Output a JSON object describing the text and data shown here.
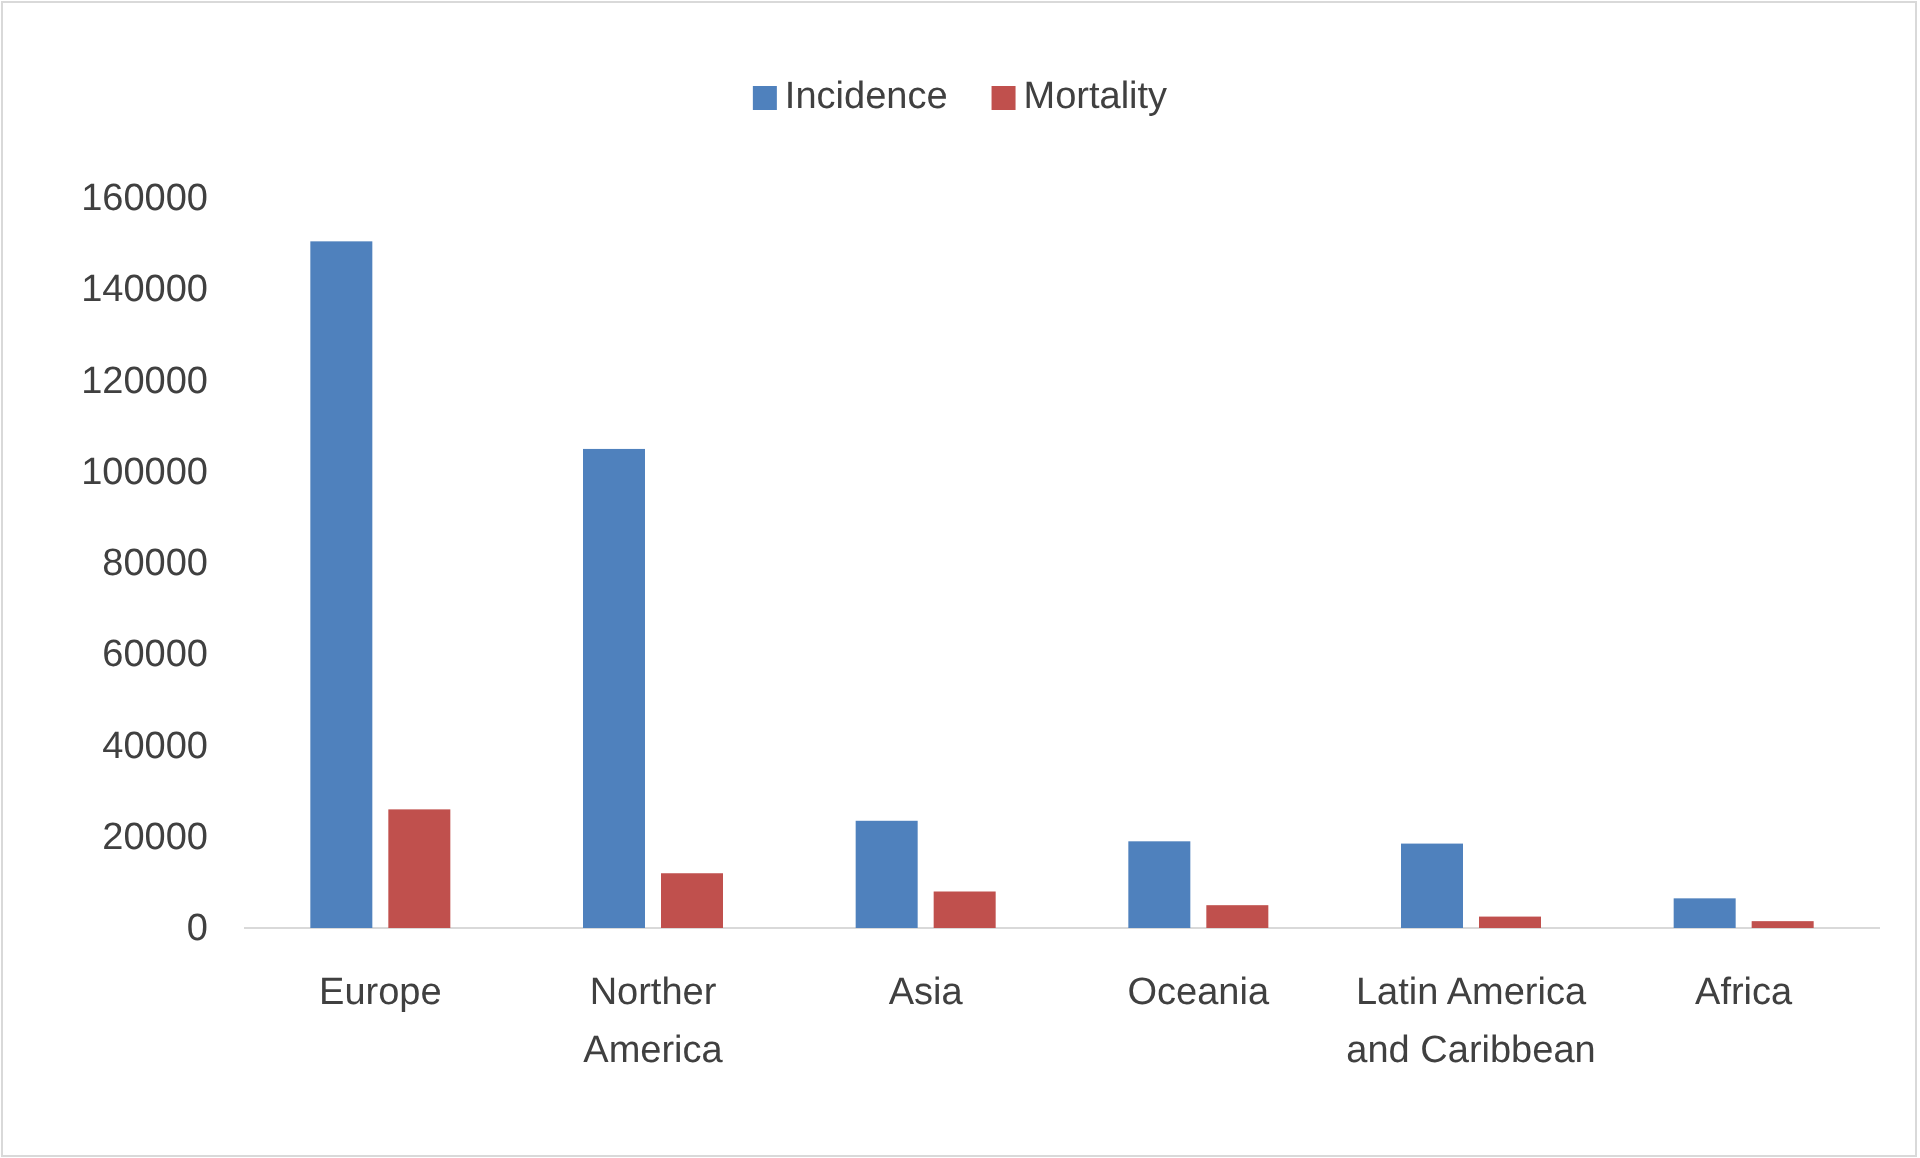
{
  "chart_data": {
    "type": "bar",
    "categories": [
      "Europe",
      "Norther America",
      "Asia",
      "Oceania",
      "Latin America and Caribbean",
      "Africa"
    ],
    "series": [
      {
        "name": "Incidence",
        "color": "#4f81bd",
        "values": [
          150500,
          105000,
          23500,
          19000,
          18500,
          6500
        ]
      },
      {
        "name": "Mortality",
        "color": "#c0504d",
        "values": [
          26000,
          12000,
          8000,
          5000,
          2500,
          1500
        ]
      }
    ],
    "ylim": [
      0,
      160000
    ],
    "yticks": [
      0,
      20000,
      40000,
      60000,
      80000,
      100000,
      120000,
      140000,
      160000
    ],
    "grid": false,
    "legend": "top"
  }
}
